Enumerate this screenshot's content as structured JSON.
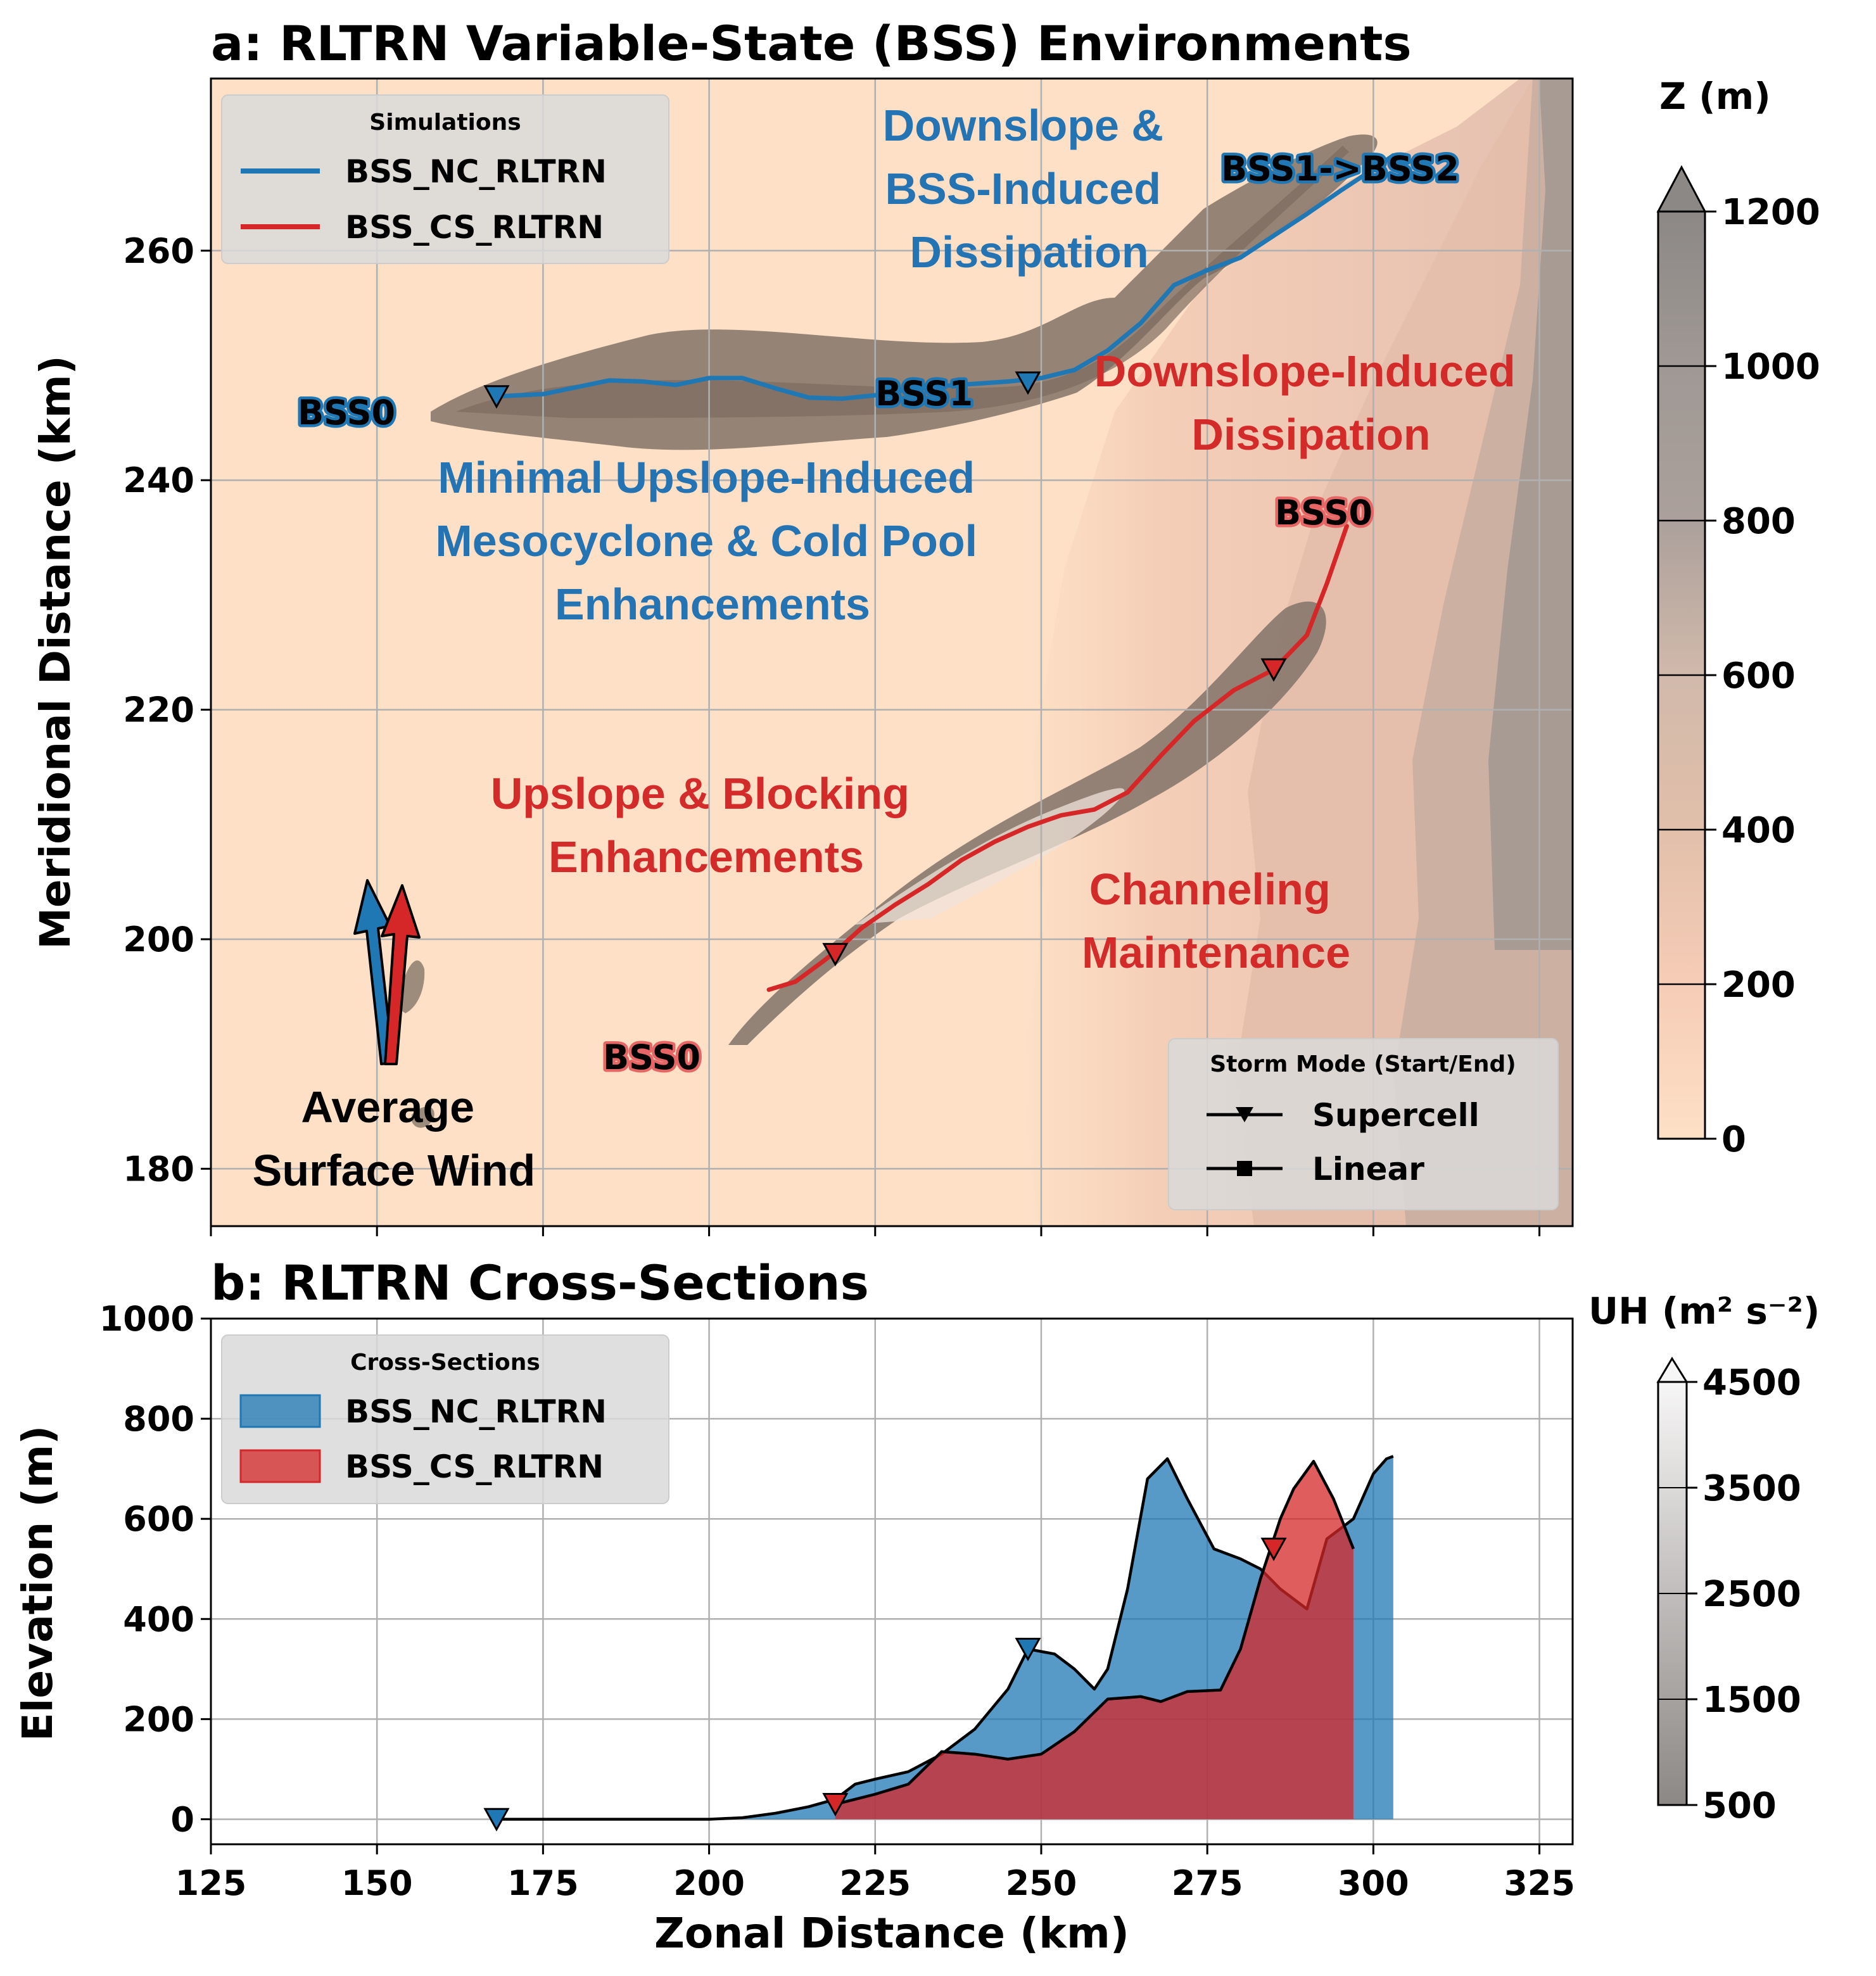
{
  "colors": {
    "blue": "#1f77b4",
    "red": "#d62728",
    "terrain_low": "#fde0c5",
    "terrain_high": "#8c8886"
  },
  "panel_a": {
    "title": "a: RLTRN Variable-State (BSS) Environments",
    "xlim": [
      125,
      330
    ],
    "ylim": [
      175,
      275
    ],
    "ylabel": "Meridional Distance (km)",
    "yticks": [
      "180",
      "200",
      "220",
      "240",
      "260"
    ],
    "xticks": [
      125,
      150,
      175,
      200,
      225,
      250,
      275,
      300,
      325
    ],
    "colorbar": {
      "title": "Z (m)",
      "ticks": [
        "0",
        "200",
        "400",
        "600",
        "800",
        "1000",
        "1200"
      ]
    },
    "legend_sim": {
      "title": "Simulations",
      "entries": [
        "BSS_NC_RLTRN",
        "BSS_CS_RLTRN"
      ]
    },
    "legend_mode": {
      "title": "Storm Mode (Start/End)",
      "entries": [
        "Supercell",
        "Linear"
      ]
    },
    "state_labels": {
      "nc_start": "BSS0",
      "nc_mid": "BSS1",
      "nc_end": "BSS1->BSS2",
      "cs_start": "BSS0",
      "cs_end": "BSS0"
    },
    "annotations": {
      "blue_top": [
        "Downslope &",
        "BSS-Induced",
        "Dissipation"
      ],
      "blue_mid": [
        "Minimal Upslope-Induced",
        "Mesocyclone & Cold Pool",
        "Enhancements"
      ],
      "red_top": [
        "Downslope-Induced",
        "Dissipation"
      ],
      "red_left": [
        "Upslope & Blocking",
        "Enhancements"
      ],
      "red_right": [
        "Channeling",
        "Maintenance"
      ],
      "wind": [
        "Average",
        "Surface Wind"
      ]
    }
  },
  "panel_b": {
    "title": "b: RLTRN Cross-Sections",
    "xlabel": "Zonal Distance (km)",
    "ylabel": "Elevation (m)",
    "yticks": [
      "0",
      "200",
      "400",
      "600",
      "800",
      "1000"
    ],
    "xticks": [
      "125",
      "150",
      "175",
      "200",
      "225",
      "250",
      "275",
      "300",
      "325"
    ],
    "colorbar": {
      "title": "UH (m² s⁻²)",
      "ticks": [
        "500",
        "1500",
        "2500",
        "3500",
        "4500"
      ]
    },
    "legend": {
      "title": "Cross-Sections",
      "entries": [
        "BSS_NC_RLTRN",
        "BSS_CS_RLTRN"
      ]
    }
  },
  "chart_data": [
    {
      "type": "line",
      "title": "a: RLTRN Variable-State (BSS) Environments",
      "xlabel": "",
      "ylabel": "Meridional Distance (km)",
      "xlim": [
        125,
        330
      ],
      "ylim": [
        175,
        275
      ],
      "grid": true,
      "series": [
        {
          "name": "BSS_NC_RLTRN",
          "x": [
            168,
            175,
            180,
            185,
            190,
            195,
            200,
            205,
            210,
            215,
            220,
            225,
            230,
            235,
            240,
            245,
            250,
            255,
            260,
            265,
            270,
            275,
            280,
            285,
            290,
            295,
            300,
            303
          ],
          "y": [
            247.3,
            247.5,
            248.1,
            248.7,
            248.6,
            248.3,
            248.9,
            248.9,
            248.0,
            247.2,
            247.1,
            247.4,
            247.9,
            248.2,
            248.4,
            248.6,
            248.9,
            249.6,
            251.3,
            253.7,
            257.0,
            258.3,
            259.4,
            261.3,
            263.2,
            265.2,
            267.1,
            268.3
          ],
          "markers": {
            "supercell_x": [
              168,
              248
            ],
            "supercell_y": [
              247.3,
              248.5
            ]
          }
        },
        {
          "name": "BSS_CS_RLTRN",
          "x": [
            209,
            213,
            217,
            219,
            223,
            228,
            233,
            238,
            243,
            248,
            253,
            258,
            263,
            268,
            273,
            279,
            285,
            290,
            293,
            296
          ],
          "y": [
            195.6,
            196.3,
            198.0,
            198.9,
            201.0,
            203.0,
            204.8,
            206.9,
            208.5,
            209.8,
            210.8,
            211.3,
            212.8,
            216.0,
            219.0,
            221.7,
            223.5,
            226.5,
            231.0,
            236.0
          ],
          "markers": {
            "supercell_x": [
              219,
              285
            ],
            "supercell_y": [
              198.7,
              223.5
            ]
          }
        }
      ]
    },
    {
      "type": "area",
      "title": "b: RLTRN Cross-Sections",
      "xlabel": "Zonal Distance (km)",
      "ylabel": "Elevation (m)",
      "xlim": [
        125,
        330
      ],
      "ylim": [
        -50,
        1000
      ],
      "grid": true,
      "series": [
        {
          "name": "BSS_NC_RLTRN",
          "x": [
            168,
            175,
            180,
            190,
            200,
            205,
            210,
            215,
            219,
            222,
            225,
            230,
            235,
            240,
            245,
            248,
            252,
            255,
            258,
            260,
            263,
            266,
            269,
            272,
            276,
            280,
            283,
            286,
            290,
            293,
            297,
            300,
            302,
            303
          ],
          "y": [
            0,
            0,
            0,
            0,
            0,
            3,
            12,
            25,
            40,
            70,
            80,
            95,
            130,
            180,
            260,
            340,
            330,
            300,
            260,
            300,
            460,
            680,
            720,
            640,
            540,
            520,
            500,
            460,
            420,
            560,
            600,
            690,
            720,
            725
          ],
          "markers": {
            "supercell_x": [
              168,
              248
            ],
            "supercell_y": [
              0,
              340
            ]
          }
        },
        {
          "name": "BSS_CS_RLTRN",
          "x": [
            219,
            222,
            225,
            230,
            235,
            240,
            245,
            250,
            255,
            260,
            265,
            268,
            272,
            277,
            280,
            283,
            286,
            288,
            291,
            294,
            297
          ],
          "y": [
            30,
            40,
            50,
            70,
            135,
            130,
            120,
            130,
            175,
            240,
            245,
            235,
            255,
            258,
            340,
            480,
            600,
            660,
            715,
            640,
            540
          ],
          "markers": {
            "supercell_x": [
              219,
              285
            ],
            "supercell_y": [
              30,
              540
            ]
          }
        }
      ]
    }
  ]
}
